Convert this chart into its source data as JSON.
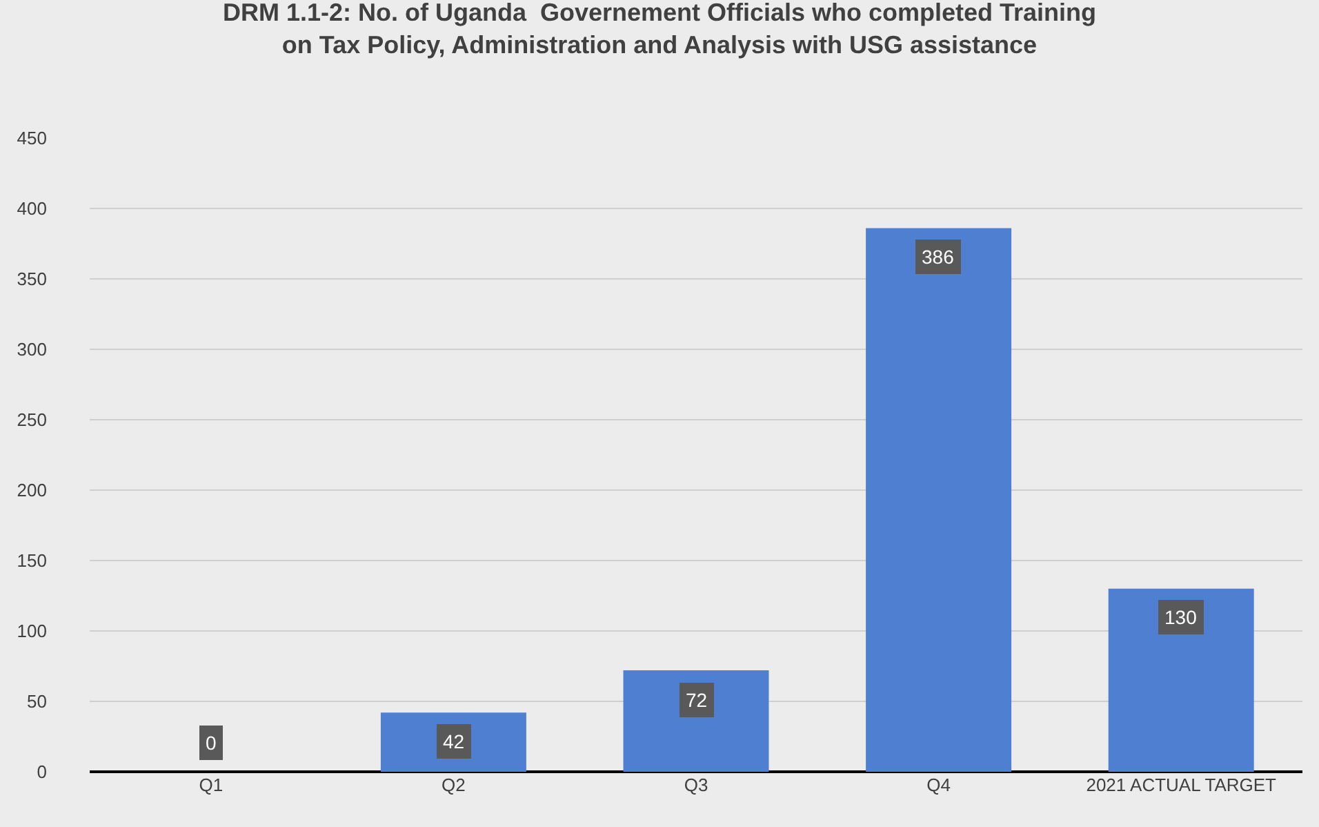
{
  "chart_data": {
    "type": "bar",
    "title": "DRM 1.1-2: No. of Uganda  Governement Officials who completed Training\non Tax Policy, Administration and Analysis with USG assistance",
    "categories": [
      "Q1",
      "Q2",
      "Q3",
      "Q4",
      "2021 ACTUAL TARGET"
    ],
    "values": [
      0,
      42,
      72,
      386,
      130
    ],
    "color": "#4f7fd1",
    "ylim": [
      0,
      450
    ],
    "yticks": [
      0,
      50,
      100,
      150,
      200,
      250,
      300,
      350,
      400,
      450
    ],
    "grid": "y",
    "data_labels": true
  }
}
